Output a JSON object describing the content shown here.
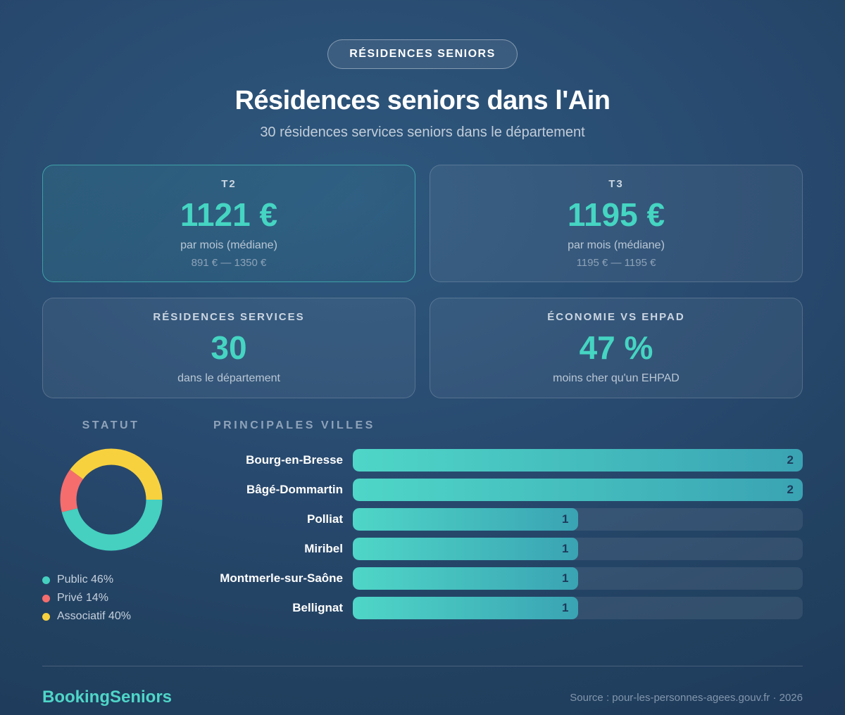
{
  "header": {
    "badge": "RÉSIDENCES SENIORS",
    "title": "Résidences seniors dans l'Ain",
    "subtitle": "30 résidences services seniors dans le département"
  },
  "cards": [
    {
      "label": "T2",
      "value": "1121 €",
      "sub": "par mois (médiane)",
      "range": "891 € — 1350 €",
      "highlight": true
    },
    {
      "label": "T3",
      "value": "1195 €",
      "sub": "par mois (médiane)",
      "range": "1195 € — 1195 €",
      "highlight": false
    },
    {
      "label": "RÉSIDENCES SERVICES",
      "value": "30",
      "sub": "dans le département",
      "range": "",
      "highlight": false
    },
    {
      "label": "ÉCONOMIE VS EHPAD",
      "value": "47 %",
      "sub": "moins cher qu'un EHPAD",
      "range": "",
      "highlight": false
    }
  ],
  "chart_data": [
    {
      "type": "pie",
      "title": "STATUT",
      "labels": [
        "Public",
        "Privé",
        "Associatif"
      ],
      "values": [
        46,
        14,
        40
      ],
      "unit": "%",
      "colors": [
        "#45d0c0",
        "#f56d6d",
        "#f8d13e"
      ],
      "legend": [
        "Public 46%",
        "Privé 14%",
        "Associatif 40%"
      ],
      "donut": {
        "start_position": "3-oclock",
        "direction": "clockwise",
        "ring_thickness_ratio": 0.32
      },
      "legend_position": "bottom-left"
    },
    {
      "type": "bar",
      "title": "PRINCIPALES VILLES",
      "orientation": "horizontal",
      "categories": [
        "Bourg-en-Bresse",
        "Bâgé-Dommartin",
        "Polliat",
        "Miribel",
        "Montmerle-sur-Saône",
        "Bellignat"
      ],
      "values": [
        2,
        2,
        1,
        1,
        1,
        1
      ],
      "xlim": [
        0,
        2
      ],
      "value_labels": "inside-right",
      "bar_gradient": [
        "#4fd6c8",
        "#3aa3b3"
      ]
    }
  ],
  "footer": {
    "brand": "BookingSeniors",
    "source": "Source : pour-les-personnes-agees.gouv.fr · 2026"
  },
  "colors": {
    "accent_teal": "#45d5c2",
    "coral": "#f56d6d",
    "yellow": "#f8d13e",
    "value_text_on_bar": "#1e3a5a",
    "background_mid": "#28496e",
    "background_dark": "#1d3557"
  }
}
